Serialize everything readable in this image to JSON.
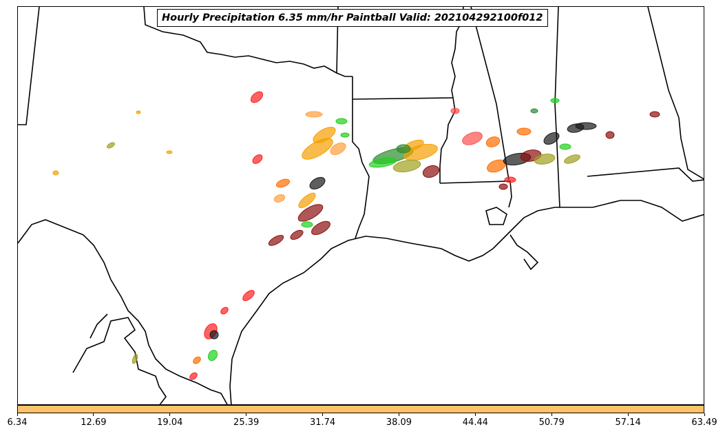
{
  "title": "Hourly Precipitation 6.35 mm/hr Paintball Valid: 202104292100f012",
  "colorbar": {
    "color": "#fdc36a",
    "ticks": [
      "6.34",
      "12.69",
      "19.04",
      "25.39",
      "31.74",
      "38.09",
      "44.44",
      "50.79",
      "57.14",
      "63.49"
    ]
  },
  "member_colors": [
    "#ff2020",
    "#ff6d00",
    "#f5a000",
    "#20d020",
    "#8b1010",
    "#1a1a1a",
    "#a0a020",
    "#2e8b2e",
    "#ff5050",
    "#ffa040"
  ]
}
